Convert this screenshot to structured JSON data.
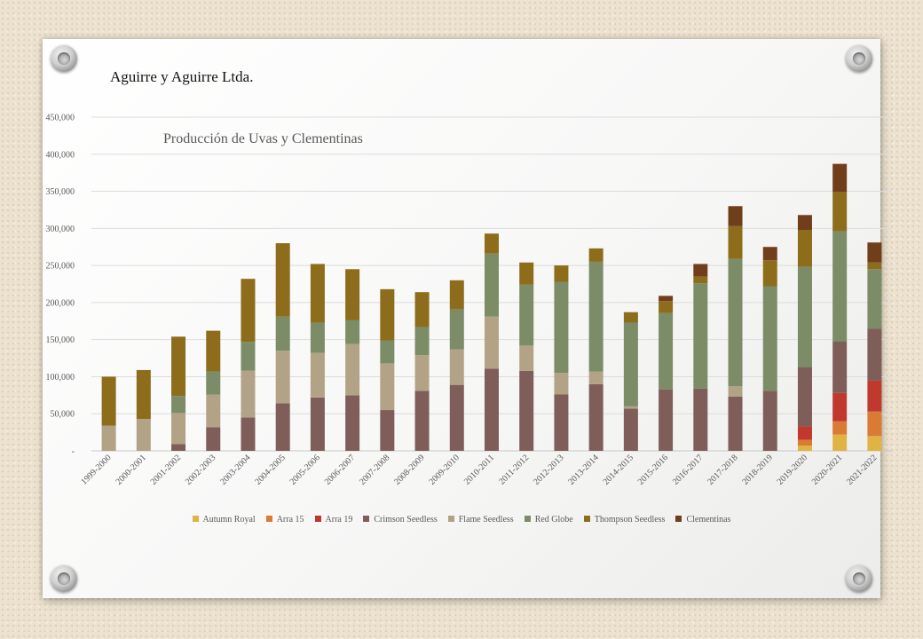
{
  "company": "Aguirre y Aguirre Ltda.",
  "chart_data": {
    "type": "bar",
    "stacked": true,
    "title": "Producción de Uvas y Clementinas",
    "xlabel": "",
    "ylabel": "",
    "ylim": [
      0,
      450000
    ],
    "yticks": [
      "-",
      "50,000",
      "100,000",
      "150,000",
      "200,000",
      "250,000",
      "300,000",
      "350,000",
      "400,000",
      "450,000"
    ],
    "grid": true,
    "legend_position": "bottom",
    "categories": [
      "1999-2000",
      "2000-2001",
      "2001-2002",
      "2002-2003",
      "2003-2004",
      "2004-2005",
      "2005-2006",
      "2006-2007",
      "2007-2008",
      "2008-2009",
      "2009-2010",
      "2010-2011",
      "2011-2012",
      "2012-2013",
      "2013-2014",
      "2014-2015",
      "2015-2016",
      "2016-2017",
      "2017-2018",
      "2018-2019",
      "2019-2020",
      "2020-2021",
      "2021-2022"
    ],
    "series": [
      {
        "name": "Autumn Royal",
        "color": "#e0b443",
        "values": [
          0,
          0,
          0,
          0,
          0,
          0,
          0,
          0,
          0,
          0,
          0,
          0,
          0,
          0,
          0,
          0,
          0,
          0,
          0,
          0,
          7000,
          22000,
          20000
        ]
      },
      {
        "name": "Arra 15",
        "color": "#d97a35",
        "values": [
          0,
          0,
          0,
          0,
          0,
          0,
          0,
          0,
          0,
          0,
          0,
          0,
          0,
          0,
          0,
          0,
          0,
          0,
          0,
          0,
          8000,
          18000,
          33000
        ]
      },
      {
        "name": "Arra 19",
        "color": "#c0392f",
        "values": [
          0,
          0,
          0,
          0,
          0,
          0,
          0,
          0,
          0,
          0,
          0,
          0,
          0,
          0,
          0,
          0,
          0,
          0,
          0,
          0,
          18000,
          38000,
          42000
        ]
      },
      {
        "name": "Crimson Seedless",
        "color": "#7f5e5a",
        "values": [
          0,
          0,
          9000,
          32000,
          45000,
          64000,
          72000,
          75000,
          55000,
          81000,
          89000,
          111000,
          108000,
          76000,
          90000,
          57000,
          83000,
          84000,
          73000,
          81000,
          80000,
          70000,
          70000
        ]
      },
      {
        "name": "Flame Seedless",
        "color": "#b3a386",
        "values": [
          34000,
          43000,
          42000,
          44000,
          63000,
          71000,
          60000,
          69000,
          63000,
          48000,
          48000,
          70000,
          34000,
          29000,
          17000,
          3000,
          0,
          0,
          14000,
          0,
          0,
          0,
          0
        ]
      },
      {
        "name": "Red Globe",
        "color": "#7b8c66",
        "values": [
          0,
          0,
          23000,
          31000,
          39000,
          46000,
          41000,
          32000,
          31000,
          38000,
          54000,
          85000,
          82000,
          123000,
          148000,
          113000,
          103000,
          142000,
          172000,
          141000,
          135000,
          148000,
          80000
        ]
      },
      {
        "name": "Thompson Seedless",
        "color": "#8d6d1c",
        "values": [
          66000,
          66000,
          80000,
          55000,
          85000,
          99000,
          79000,
          69000,
          69000,
          47000,
          39000,
          27000,
          30000,
          22000,
          18000,
          14000,
          16000,
          9000,
          44000,
          35000,
          50000,
          53000,
          9000
        ]
      },
      {
        "name": "Clementinas",
        "color": "#713e1c",
        "values": [
          0,
          0,
          0,
          0,
          0,
          0,
          0,
          0,
          0,
          0,
          0,
          0,
          0,
          0,
          0,
          0,
          7000,
          17000,
          27000,
          18000,
          20000,
          38000,
          27000
        ]
      }
    ]
  }
}
